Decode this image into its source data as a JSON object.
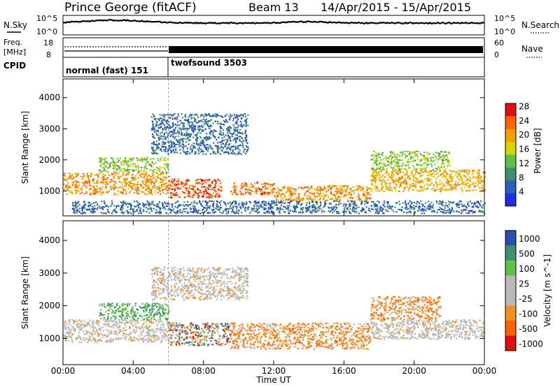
{
  "header": {
    "station": "Prince George (fitACF)",
    "beam": "Beam 13",
    "dates": "14/Apr/2015 - 15/Apr/2015"
  },
  "noise_panel": {
    "left_label": "N.Sky",
    "left_ticks": [
      "10^5",
      "10^0"
    ],
    "right_ticks": [
      "10^5",
      "10^0"
    ],
    "right_label": "N.Search"
  },
  "freq_panel": {
    "left_label_line1": "Freq.",
    "left_label_line2": "[MHz]",
    "left_ticks": [
      "18",
      "8"
    ],
    "right_ticks": [
      "60",
      "0"
    ],
    "right_label": "Nave"
  },
  "cpid_panel": {
    "label": "CPID",
    "program_1": "normal (fast) 151",
    "program_2": "twofsound 3503",
    "switch_hour": 6
  },
  "time_axis": {
    "ticks": [
      "00:00",
      "04:00",
      "08:00",
      "12:00",
      "16:00",
      "20:00",
      "00:00"
    ],
    "tick_hours": [
      0,
      4,
      8,
      12,
      16,
      20,
      24
    ],
    "label": "Time UT",
    "range_hours": [
      0,
      24
    ]
  },
  "colors": {
    "power_scale": [
      "#1a2fe8",
      "#2e5fb8",
      "#3f8f6a",
      "#5fc04a",
      "#d8d200",
      "#f0a000",
      "#ff6000",
      "#e01010"
    ],
    "velocity_scale": [
      "#e01010",
      "#ff6000",
      "#f09020",
      "#b8b8b8",
      "#b8b8b8",
      "#5fc04a",
      "#3f8f6a",
      "#2a4fb0"
    ]
  },
  "chart_data": [
    {
      "type": "heatmap",
      "name": "power",
      "ylabel": "Slant Range [km]",
      "xlabel": "",
      "yticks": [
        "1000",
        "2000",
        "3000",
        "4000"
      ],
      "ytick_values": [
        1000,
        2000,
        3000,
        4000
      ],
      "ylim": [
        200,
        4600
      ],
      "xlim": [
        0,
        24
      ],
      "colorbar_label": "Power [dB]",
      "colorbar_ticks": [
        "4",
        "8",
        "12",
        "16",
        "20",
        "24",
        "28"
      ],
      "colorbar_range": [
        0,
        30
      ],
      "regions": [
        {
          "t0": 0.0,
          "t1": 6.0,
          "r0": 900,
          "r1": 1600,
          "level": 22
        },
        {
          "t0": 6.0,
          "t1": 9.0,
          "r0": 800,
          "r1": 1400,
          "level": 26
        },
        {
          "t0": 9.5,
          "t1": 12.0,
          "r0": 900,
          "r1": 1300,
          "level": 24
        },
        {
          "t0": 12.0,
          "t1": 17.5,
          "r0": 700,
          "r1": 1200,
          "level": 22
        },
        {
          "t0": 17.5,
          "t1": 24.0,
          "r0": 1000,
          "r1": 1700,
          "level": 20
        },
        {
          "t0": 17.5,
          "t1": 22.0,
          "r0": 1700,
          "r1": 2300,
          "level": 14
        },
        {
          "t0": 2.0,
          "t1": 6.0,
          "r0": 1600,
          "r1": 2100,
          "level": 14
        },
        {
          "t0": 5.0,
          "t1": 10.5,
          "r0": 2200,
          "r1": 3500,
          "level": 6
        },
        {
          "t0": 0.5,
          "t1": 24.0,
          "r0": 300,
          "r1": 700,
          "level": 6
        }
      ]
    },
    {
      "type": "heatmap",
      "name": "velocity",
      "ylabel": "Slant Range [km]",
      "xlabel": "Time UT",
      "yticks": [
        "1000",
        "2000",
        "3000",
        "4000"
      ],
      "ytick_values": [
        1000,
        2000,
        3000,
        4000
      ],
      "ylim": [
        200,
        4600
      ],
      "xlim": [
        0,
        24
      ],
      "colorbar_label": "Velocity [m s^-1]",
      "colorbar_ticks": [
        "1000",
        "500",
        "100",
        "25",
        "-25",
        "-100",
        "-500",
        "-1000"
      ],
      "regions": [
        {
          "t0": 0.0,
          "t1": 6.0,
          "r0": 900,
          "r1": 1600,
          "class": "ground"
        },
        {
          "t0": 2.0,
          "t1": 6.0,
          "r0": 1600,
          "r1": 2100,
          "class": "positive"
        },
        {
          "t0": 6.0,
          "t1": 9.5,
          "r0": 800,
          "r1": 1500,
          "class": "mixed"
        },
        {
          "t0": 9.5,
          "t1": 17.5,
          "r0": 700,
          "r1": 1500,
          "class": "negative"
        },
        {
          "t0": 17.5,
          "t1": 24.0,
          "r0": 1000,
          "r1": 1600,
          "class": "ground"
        },
        {
          "t0": 17.5,
          "t1": 21.5,
          "r0": 1600,
          "r1": 2300,
          "class": "negative"
        },
        {
          "t0": 5.0,
          "t1": 10.5,
          "r0": 2200,
          "r1": 3200,
          "class": "ground"
        }
      ]
    }
  ]
}
